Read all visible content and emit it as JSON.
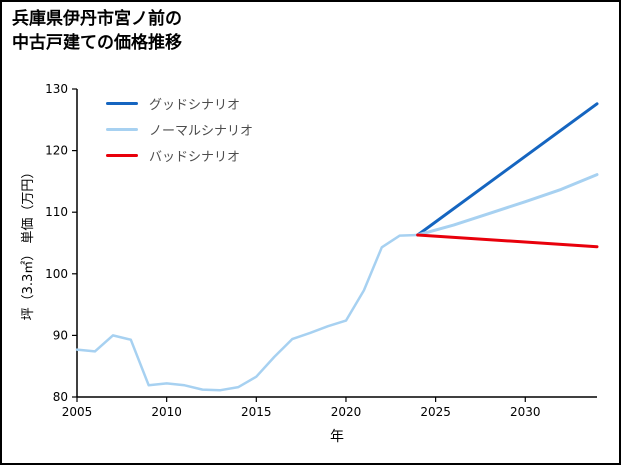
{
  "header": {
    "title_lines": [
      "兵庫県伊丹市宮ノ前の",
      "中古戸建ての価格推移"
    ]
  },
  "chart_data": {
    "type": "line",
    "title": "兵庫県伊丹市宮ノ前の中古戸建ての価格推移",
    "xlabel": "年",
    "ylabel": "坪（3.3㎡） 単価（万円）",
    "xlim": [
      2005,
      2034
    ],
    "ylim": [
      80,
      130
    ],
    "xticks": [
      2005,
      2010,
      2015,
      2020,
      2025,
      2030
    ],
    "yticks": [
      80,
      90,
      100,
      110,
      120,
      130
    ],
    "grid": false,
    "legend_position": "upper-left",
    "axis_color": "#000000",
    "legend": [
      {
        "label": "グッドシナリオ",
        "color": "#1565c0"
      },
      {
        "label": "ノーマルシナリオ",
        "color": "#a7d1f1"
      },
      {
        "label": "バッドシナリオ",
        "color": "#e8000b"
      }
    ],
    "series": [
      {
        "name": "historical",
        "color": "#a7d1f1",
        "lw": 2.5,
        "x": [
          2005,
          2006,
          2007,
          2008,
          2009,
          2010,
          2011,
          2012,
          2013,
          2014,
          2015,
          2016,
          2017,
          2018,
          2019,
          2020,
          2021,
          2022,
          2023,
          2024
        ],
        "y": [
          87.7,
          87.4,
          90.0,
          89.3,
          81.9,
          82.2,
          81.9,
          81.2,
          81.1,
          81.6,
          83.3,
          86.5,
          89.4,
          90.4,
          91.5,
          92.4,
          97.3,
          104.3,
          106.2,
          106.3
        ]
      },
      {
        "name": "good-scenario",
        "color": "#1565c0",
        "lw": 3,
        "x": [
          2024,
          2034
        ],
        "y": [
          106.3,
          127.6
        ]
      },
      {
        "name": "normal-scenario",
        "color": "#a7d1f1",
        "lw": 3,
        "x": [
          2024,
          2026,
          2028,
          2030,
          2032,
          2034
        ],
        "y": [
          106.3,
          107.9,
          109.8,
          111.7,
          113.7,
          116.1
        ]
      },
      {
        "name": "bad-scenario",
        "color": "#e8000b",
        "lw": 3,
        "x": [
          2024,
          2034
        ],
        "y": [
          106.3,
          104.4
        ]
      }
    ]
  }
}
